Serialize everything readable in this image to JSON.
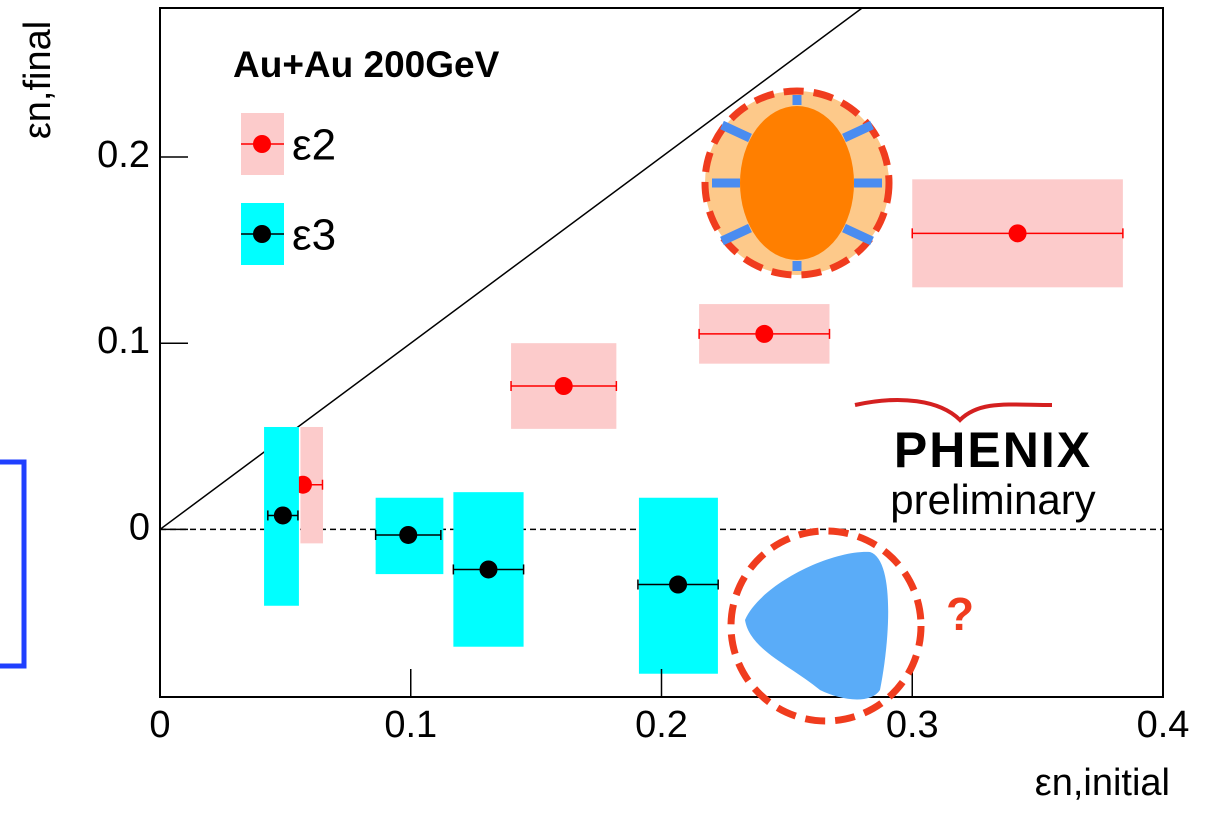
{
  "chart_data": {
    "type": "scatter",
    "title": "Au+Au 200GeV",
    "x_label": "εn,initial",
    "y_label": "εn,final",
    "logo": "PHENIX",
    "status": "preliminary",
    "annotation": "?",
    "xlim": [
      0,
      0.4
    ],
    "ylim": [
      -0.09,
      0.28
    ],
    "xticks": [
      0,
      0.1,
      0.2,
      0.3,
      0.4
    ],
    "yticks": [
      0,
      0.1,
      0.2
    ],
    "series": [
      {
        "name": "ε2",
        "color": "#ff0000",
        "box_color": "#fccbcb",
        "x": [
          0.057,
          0.161,
          0.241,
          0.342
        ],
        "values": [
          0.024,
          0.077,
          0.105,
          0.159
        ],
        "x_err": [
          0.0078,
          0.021,
          0.026,
          0.042
        ],
        "box_x": [
          [
            0.056,
            0.065
          ],
          [
            0.14,
            0.182
          ],
          [
            0.215,
            0.267
          ],
          [
            0.3,
            0.384
          ]
        ],
        "box_y": [
          [
            -0.0075,
            0.055
          ],
          [
            0.054,
            0.1
          ],
          [
            0.089,
            0.121
          ],
          [
            0.13,
            0.188
          ]
        ]
      },
      {
        "name": "ε3",
        "color": "#000000",
        "box_color": "#00ffff",
        "x": [
          0.049,
          0.099,
          0.131,
          0.2066
        ],
        "values": [
          0.0075,
          -0.003,
          -0.0215,
          -0.0296
        ],
        "x_err": [
          0.006,
          0.013,
          0.014,
          0.016
        ],
        "box_x": [
          [
            0.0415,
            0.0554
          ],
          [
            0.086,
            0.113
          ],
          [
            0.117,
            0.145
          ],
          [
            0.191,
            0.2225
          ]
        ],
        "box_y": [
          [
            -0.041,
            0.055
          ],
          [
            -0.024,
            0.017
          ],
          [
            -0.063,
            0.02
          ],
          [
            -0.0775,
            0.017
          ]
        ]
      }
    ]
  }
}
